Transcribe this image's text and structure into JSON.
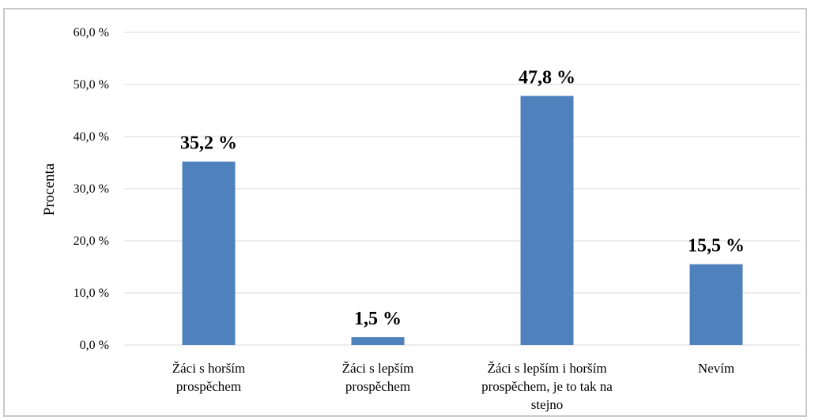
{
  "chart_data": {
    "type": "bar",
    "categories": [
      [
        "Žáci s horším",
        "prospěchem"
      ],
      [
        "Žáci s lepším",
        "prospěchem"
      ],
      [
        "Žáci s lepším i horším",
        "prospěchem, je to tak na",
        "stejno"
      ],
      [
        "Nevím"
      ]
    ],
    "values": [
      35.2,
      1.5,
      47.8,
      15.5
    ],
    "value_labels": [
      "35,2 %",
      "1,5 %",
      "47,8 %",
      "15,5 %"
    ],
    "ylabel": "Procenta",
    "ylim": [
      0,
      60
    ],
    "yticks": [
      0,
      10,
      20,
      30,
      40,
      50,
      60
    ],
    "ytick_labels": [
      "0,0 %",
      "10,0 %",
      "20,0 %",
      "30,0 %",
      "40,0 %",
      "50,0 %",
      "60,0 %"
    ],
    "grid": true,
    "bar_color": "#4f81bd",
    "grid_color": "#d9d9d9"
  }
}
